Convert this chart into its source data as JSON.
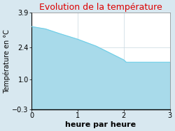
{
  "title": "Evolution de la température",
  "xlabel": "heure par heure",
  "ylabel": "Température en °C",
  "xlim": [
    0,
    3
  ],
  "ylim": [
    -0.3,
    3.9
  ],
  "yticks": [
    -0.3,
    1.0,
    2.4,
    3.9
  ],
  "xticks": [
    0,
    1,
    2,
    3
  ],
  "x": [
    0,
    0.3,
    0.6,
    1.0,
    1.4,
    1.7,
    2.0,
    2.05,
    2.5,
    3.0
  ],
  "y": [
    3.3,
    3.2,
    3.0,
    2.75,
    2.45,
    2.15,
    1.85,
    1.75,
    1.75,
    1.75
  ],
  "line_color": "#6ecfe8",
  "fill_color": "#a8daea",
  "background_color": "#d8e8f0",
  "plot_bg_color": "#ffffff",
  "title_color": "#dd0000",
  "title_fontsize": 9,
  "xlabel_fontsize": 8,
  "ylabel_fontsize": 7,
  "tick_fontsize": 7,
  "grid_color": "#c8d8e0"
}
